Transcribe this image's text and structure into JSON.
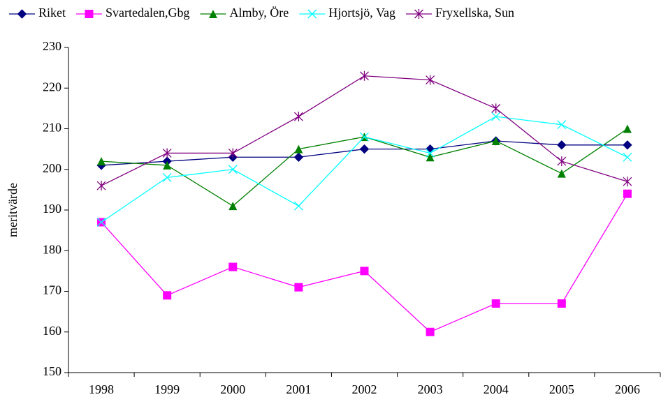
{
  "chart_data": {
    "type": "line",
    "y_label": "meritvärde",
    "categories": [
      "1998",
      "1999",
      "2000",
      "2001",
      "2002",
      "2003",
      "2004",
      "2005",
      "2006"
    ],
    "series": [
      {
        "name": "Riket",
        "color": "#000080",
        "marker": "diamond",
        "values": [
          201,
          202,
          203,
          203,
          205,
          205,
          207,
          206,
          206
        ]
      },
      {
        "name": "Svartedalen,Gbg",
        "color": "#ff00ff",
        "marker": "square",
        "values": [
          187,
          169,
          176,
          171,
          175,
          160,
          167,
          167,
          194
        ]
      },
      {
        "name": "Almby, Öre",
        "color": "#008000",
        "marker": "triangle",
        "values": [
          202,
          201,
          191,
          205,
          208,
          203,
          207,
          199,
          210
        ]
      },
      {
        "name": "Hjortsjö, Vag",
        "color": "#00ffff",
        "marker": "x",
        "values": [
          187,
          198,
          200,
          191,
          208,
          204,
          213,
          211,
          203
        ]
      },
      {
        "name": "Fryxellska, Sun",
        "color": "#800080",
        "marker": "star",
        "values": [
          196,
          204,
          204,
          213,
          223,
          222,
          215,
          202,
          197
        ]
      }
    ],
    "ylim": [
      150,
      230
    ],
    "yticks": [
      150,
      160,
      170,
      180,
      190,
      200,
      210,
      220,
      230
    ],
    "legend": "top"
  }
}
